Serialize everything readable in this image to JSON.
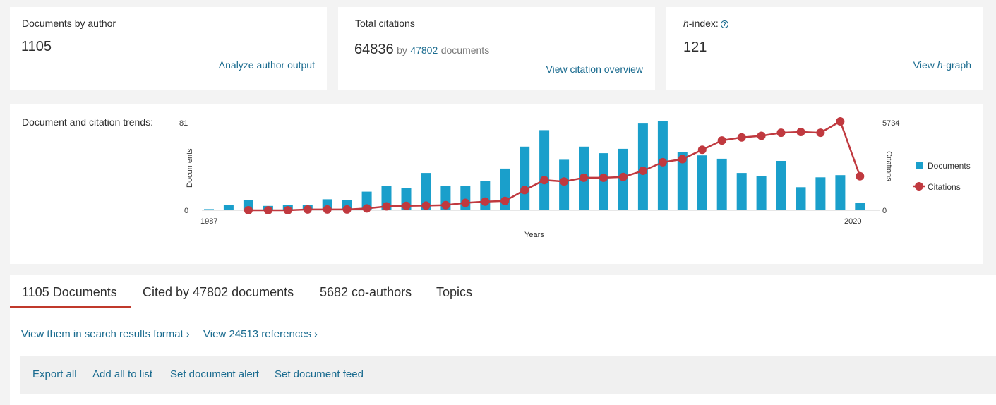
{
  "metrics": {
    "documents": {
      "label": "Documents by author",
      "value": "1105",
      "link": "Analyze author output"
    },
    "citations": {
      "label": "Total citations",
      "value": "64836",
      "by": "by",
      "by_count": "47802",
      "by_suffix": "documents",
      "link": "View citation overview"
    },
    "hindex": {
      "label_italic": "h",
      "label_rest": "-index:",
      "help": "?",
      "value": "121",
      "link_prefix": "View ",
      "link_italic": "h",
      "link_suffix": "-graph"
    }
  },
  "trends": {
    "label": "Document and citation trends:",
    "left_axis": {
      "label": "Documents",
      "max_label": "81",
      "min_label": "0"
    },
    "right_axis": {
      "label": "Citations",
      "max_label": "5734",
      "min_label": "0"
    },
    "x_axis": {
      "label": "Years",
      "start_label": "1987",
      "end_label": "2020"
    }
  },
  "chart_data": {
    "type": "bar",
    "x": [
      1987,
      1988,
      1989,
      1990,
      1991,
      1992,
      1993,
      1994,
      1995,
      1996,
      1997,
      1998,
      1999,
      2000,
      2001,
      2002,
      2003,
      2004,
      2005,
      2006,
      2007,
      2008,
      2009,
      2010,
      2011,
      2012,
      2013,
      2014,
      2015,
      2016,
      2017,
      2018,
      2019,
      2020
    ],
    "series": [
      {
        "name": "Documents",
        "kind": "bar",
        "axis": "left",
        "color": "#1a9fcb",
        "values": [
          1,
          5,
          9,
          4,
          5,
          5,
          10,
          9,
          17,
          22,
          20,
          34,
          22,
          22,
          27,
          38,
          58,
          73,
          46,
          58,
          52,
          56,
          79,
          81,
          53,
          50,
          47,
          34,
          31,
          45,
          21,
          30,
          32,
          7
        ]
      },
      {
        "name": "Citations",
        "kind": "line",
        "axis": "right",
        "color": "#c0393f",
        "values": [
          null,
          null,
          0,
          0,
          0,
          50,
          50,
          50,
          120,
          250,
          280,
          300,
          330,
          480,
          560,
          600,
          1300,
          1950,
          1850,
          2100,
          2100,
          2150,
          2550,
          3100,
          3300,
          3900,
          4500,
          4700,
          4800,
          5000,
          5050,
          5000,
          5734,
          2200
        ]
      }
    ],
    "ylim_left": [
      0,
      81
    ],
    "ylim_right": [
      0,
      5734
    ],
    "legend": "right"
  },
  "tabs": {
    "items": [
      {
        "label": "1105 Documents",
        "active": true
      },
      {
        "label": "Cited by 47802 documents",
        "active": false
      },
      {
        "label": "5682 co-authors",
        "active": false
      },
      {
        "label": "Topics",
        "active": false
      }
    ]
  },
  "views": {
    "search_format": "View them in search results format",
    "references": "View 24513 references",
    "chevron": "›"
  },
  "toolbar": {
    "export_all": "Export all",
    "add_to_list": "Add all to list",
    "set_alert": "Set document alert",
    "set_feed": "Set document feed"
  }
}
